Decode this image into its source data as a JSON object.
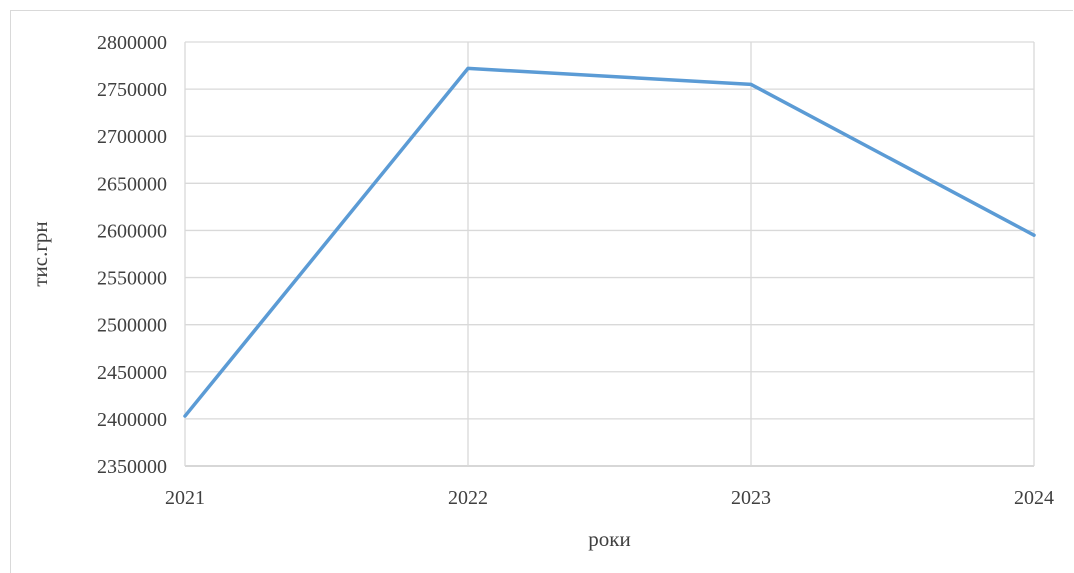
{
  "chart_data": {
    "type": "line",
    "title": "",
    "xlabel": "роки",
    "ylabel": "тис.грн",
    "categories": [
      "2021",
      "2022",
      "2023",
      "2024"
    ],
    "series": [
      {
        "values": [
          2403000,
          2772000,
          2755000,
          2595000
        ],
        "color": "#5b9bd5"
      }
    ],
    "ylim": [
      2350000,
      2800000
    ],
    "ystep": 50000,
    "grid": true,
    "legend": "none"
  }
}
